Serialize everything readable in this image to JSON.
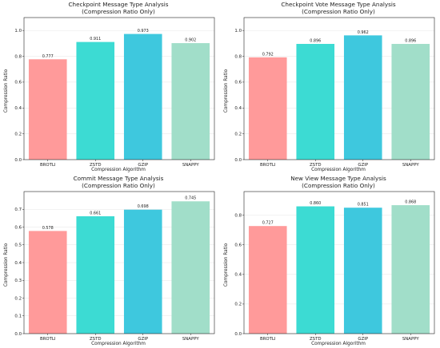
{
  "chart_data": [
    {
      "type": "bar",
      "title": "Checkpoint Message Type Analysis",
      "subtitle": "(Compression Ratio Only)",
      "xlabel": "Compression Algorithm",
      "ylabel": "Compression Ratio",
      "categories": [
        "BROTLI",
        "ZSTD",
        "GZIP",
        "SNAPPY"
      ],
      "values": [
        0.777,
        0.911,
        0.973,
        0.902
      ],
      "value_labels": [
        "0.777",
        "0.911",
        "0.973",
        "0.902"
      ],
      "yticks": [
        "0.0",
        "0.2",
        "0.4",
        "0.6",
        "0.8",
        "1.0"
      ],
      "ylim": [
        0,
        1.1
      ],
      "grid": true,
      "colors": [
        "#ff9a9a",
        "#3cdbd3",
        "#3ec8de",
        "#a1dec9"
      ]
    },
    {
      "type": "bar",
      "title": "Checkpoint Vote Message Type Analysis",
      "subtitle": "(Compression Ratio Only)",
      "xlabel": "Compression Algorithm",
      "ylabel": "Compression Ratio",
      "categories": [
        "BROTLI",
        "ZSTD",
        "GZIP",
        "SNAPPY"
      ],
      "values": [
        0.792,
        0.896,
        0.962,
        0.896
      ],
      "value_labels": [
        "0.792",
        "0.896",
        "0.962",
        "0.896"
      ],
      "yticks": [
        "0.0",
        "0.2",
        "0.4",
        "0.6",
        "0.8",
        "1.0"
      ],
      "ylim": [
        0,
        1.1
      ],
      "grid": true,
      "colors": [
        "#ff9a9a",
        "#3cdbd3",
        "#3ec8de",
        "#a1dec9"
      ]
    },
    {
      "type": "bar",
      "title": "Commit Message Type Analysis",
      "subtitle": "(Compression Ratio Only)",
      "xlabel": "Compression Algorithm",
      "ylabel": "Compression Ratio",
      "categories": [
        "BROTLI",
        "ZSTD",
        "GZIP",
        "SNAPPY"
      ],
      "values": [
        0.578,
        0.661,
        0.698,
        0.745
      ],
      "value_labels": [
        "0.578",
        "0.661",
        "0.698",
        "0.745"
      ],
      "yticks": [
        "0.0",
        "0.1",
        "0.2",
        "0.3",
        "0.4",
        "0.5",
        "0.6",
        "0.7"
      ],
      "ylim": [
        0,
        0.8
      ],
      "grid": true,
      "colors": [
        "#ff9a9a",
        "#3cdbd3",
        "#3ec8de",
        "#a1dec9"
      ]
    },
    {
      "type": "bar",
      "title": "New View Message Type Analysis",
      "subtitle": "(Compression Ratio Only)",
      "xlabel": "Compression Algorithm",
      "ylabel": "Compression Ratio",
      "categories": [
        "BROTLI",
        "ZSTD",
        "GZIP",
        "SNAPPY"
      ],
      "values": [
        0.727,
        0.86,
        0.851,
        0.868
      ],
      "value_labels": [
        "0.727",
        "0.860",
        "0.851",
        "0.868"
      ],
      "yticks": [
        "0.0",
        "0.2",
        "0.4",
        "0.6",
        "0.8"
      ],
      "ylim": [
        0,
        0.96
      ],
      "grid": true,
      "colors": [
        "#ff9a9a",
        "#3cdbd3",
        "#3ec8de",
        "#a1dec9"
      ]
    }
  ]
}
